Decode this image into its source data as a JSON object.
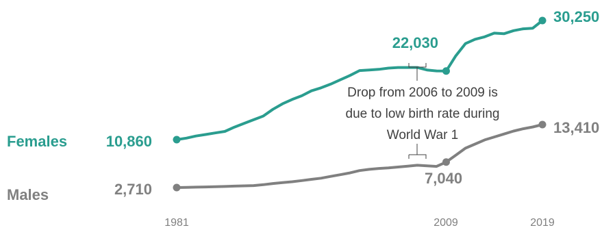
{
  "colors": {
    "females": "#2a9d8f",
    "males": "#808080",
    "annotation": "#404040"
  },
  "chart_data": {
    "type": "line",
    "title": "",
    "xlabel": "",
    "ylabel": "",
    "x_ticks": [
      "1981",
      "2009",
      "2019"
    ],
    "xlim": [
      1981,
      2019
    ],
    "ylim": [
      0,
      32000
    ],
    "grid": false,
    "series": [
      {
        "name": "Females",
        "color": "#2a9d8f",
        "x": [
          1981,
          1982,
          1983,
          1984,
          1985,
          1986,
          1987,
          1988,
          1989,
          1990,
          1991,
          1992,
          1993,
          1994,
          1995,
          1996,
          1997,
          1998,
          1999,
          2000,
          2001,
          2002,
          2003,
          2004,
          2005,
          2006,
          2007,
          2008,
          2009,
          2010,
          2011,
          2012,
          2013,
          2014,
          2015,
          2016,
          2017,
          2018,
          2019
        ],
        "y": [
          10860,
          11100,
          11450,
          11700,
          11950,
          12200,
          12900,
          13500,
          14100,
          14700,
          15800,
          16700,
          17400,
          18000,
          18800,
          19300,
          19900,
          20600,
          21300,
          22100,
          22200,
          22300,
          22500,
          22600,
          22600,
          22600,
          22200,
          22050,
          22030,
          24500,
          26500,
          27200,
          27600,
          28200,
          28100,
          28600,
          28900,
          29000,
          30250
        ],
        "labels": {
          "start": "10,860",
          "dip": "22,030",
          "end": "30,250"
        }
      },
      {
        "name": "Males",
        "color": "#808080",
        "x": [
          1981,
          1982,
          1983,
          1984,
          1985,
          1986,
          1987,
          1988,
          1989,
          1990,
          1991,
          1992,
          1993,
          1994,
          1995,
          1996,
          1997,
          1998,
          1999,
          2000,
          2001,
          2002,
          2003,
          2004,
          2005,
          2006,
          2007,
          2008,
          2009,
          2010,
          2011,
          2012,
          2013,
          2014,
          2015,
          2016,
          2017,
          2018,
          2019
        ],
        "y": [
          2710,
          2750,
          2780,
          2820,
          2850,
          2900,
          2950,
          3000,
          3050,
          3200,
          3400,
          3550,
          3700,
          3900,
          4100,
          4300,
          4600,
          4900,
          5200,
          5600,
          5800,
          5950,
          6050,
          6200,
          6350,
          6500,
          6400,
          6300,
          7040,
          8200,
          9400,
          10100,
          10800,
          11300,
          11800,
          12300,
          12700,
          13000,
          13410
        ],
        "labels": {
          "start": "2,710",
          "dip": "7,040",
          "end": "13,410"
        }
      }
    ],
    "annotation": {
      "lines": [
        "Drop from 2006 to 2009 is",
        "due to low birth rate during",
        "World War 1"
      ],
      "x_range": [
        2006,
        2009
      ]
    }
  }
}
